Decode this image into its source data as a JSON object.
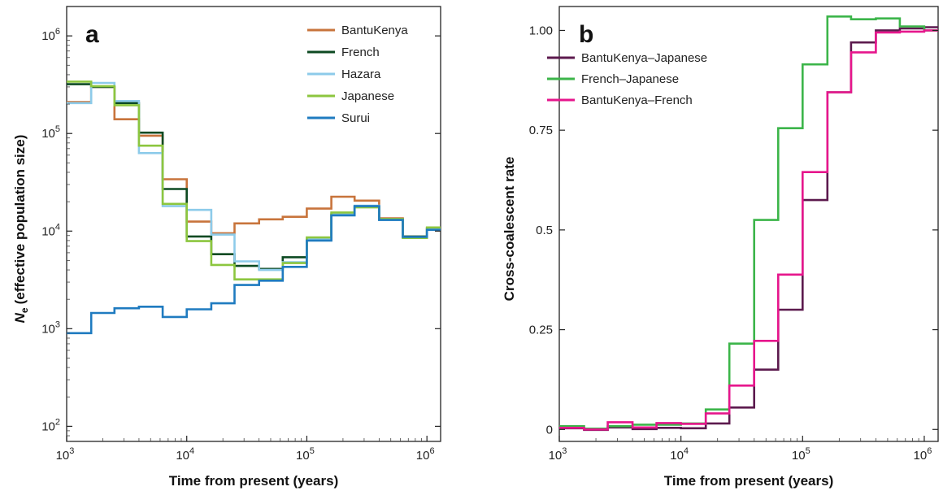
{
  "chart_data": [
    {
      "type": "line",
      "panel": "a",
      "xlabel": "Time from present (years)",
      "ylabel": "(effective population size)",
      "ylabel_symbol": "N",
      "ylabel_subscript": "e",
      "xscale": "log",
      "yscale": "log",
      "xlim": [
        1000,
        1300000
      ],
      "ylim": [
        70,
        2000000
      ],
      "x_ticks": [
        {
          "base": "10",
          "exp": "3"
        },
        {
          "base": "10",
          "exp": "4"
        },
        {
          "base": "10",
          "exp": "5"
        },
        {
          "base": "10",
          "exp": "6"
        }
      ],
      "y_ticks": [
        {
          "base": "10",
          "exp": "2"
        },
        {
          "base": "10",
          "exp": "3"
        },
        {
          "base": "10",
          "exp": "4"
        },
        {
          "base": "10",
          "exp": "5"
        },
        {
          "base": "10",
          "exp": "6"
        }
      ],
      "legend_position": "top-right",
      "step_edges": [
        1000,
        1600,
        2500,
        4000,
        6300,
        10000,
        16000,
        25000,
        40000,
        63000,
        100000,
        160000,
        250000,
        400000,
        630000,
        1000000,
        1300000
      ],
      "series": [
        {
          "name": "BantuKenya",
          "color": "#c8743c",
          "values": [
            210000,
            300000,
            140000,
            95000,
            34000,
            12500,
            9500,
            12000,
            13200,
            14000,
            17000,
            22500,
            20500,
            13500,
            8700,
            10800
          ]
        },
        {
          "name": "French",
          "color": "#0d4a22",
          "values": [
            320000,
            300000,
            205000,
            102000,
            27000,
            8800,
            5800,
            4400,
            4100,
            5400,
            8200,
            14800,
            17800,
            13200,
            8800,
            10500
          ]
        },
        {
          "name": "Hazara",
          "color": "#8dcbea",
          "values": [
            205000,
            330000,
            215000,
            63000,
            18000,
            16500,
            9200,
            4900,
            4000,
            4800,
            8300,
            15200,
            18200,
            13000,
            8600,
            10700
          ]
        },
        {
          "name": "Japanese",
          "color": "#8cc63f",
          "values": [
            340000,
            305000,
            195000,
            75000,
            19000,
            7900,
            4500,
            3200,
            3200,
            4700,
            8600,
            15500,
            17500,
            13300,
            8500,
            10900
          ]
        },
        {
          "name": "Surui",
          "color": "#1f7bc0",
          "values": [
            900,
            1450,
            1620,
            1680,
            1320,
            1580,
            1820,
            2800,
            3100,
            4300,
            8000,
            14500,
            18000,
            13000,
            8700,
            10300
          ]
        }
      ]
    },
    {
      "type": "line",
      "panel": "b",
      "xlabel": "Time from present (years)",
      "ylabel": "Cross-coalescent rate",
      "xscale": "log",
      "yscale": "linear",
      "xlim": [
        1000,
        1300000
      ],
      "ylim": [
        -0.03,
        1.06
      ],
      "x_ticks": [
        {
          "base": "10",
          "exp": "3"
        },
        {
          "base": "10",
          "exp": "4"
        },
        {
          "base": "10",
          "exp": "5"
        },
        {
          "base": "10",
          "exp": "6"
        }
      ],
      "y_ticks": [
        {
          "value": 0,
          "label": "0"
        },
        {
          "value": 0.25,
          "label": "0.25"
        },
        {
          "value": 0.5,
          "label": "0.5"
        },
        {
          "value": 0.75,
          "label": "0.75"
        },
        {
          "value": 1.0,
          "label": "1.00"
        }
      ],
      "legend_position": "top-left",
      "step_edges": [
        1000,
        1600,
        2500,
        4000,
        6300,
        10000,
        16000,
        25000,
        40000,
        63000,
        100000,
        160000,
        250000,
        400000,
        630000,
        1000000,
        1300000
      ],
      "series": [
        {
          "name": "BantuKenya–Japanese",
          "color": "#5c1a4e",
          "values": [
            0.003,
            -0.001,
            0.005,
            0.001,
            0.004,
            0.003,
            0.015,
            0.055,
            0.15,
            0.3,
            0.575,
            0.845,
            0.97,
            1.0,
            1.005,
            1.008
          ]
        },
        {
          "name": "French–Japanese",
          "color": "#3cb54a",
          "values": [
            0.008,
            0.002,
            0.008,
            0.012,
            0.012,
            0.015,
            0.05,
            0.215,
            0.525,
            0.755,
            0.915,
            1.035,
            1.028,
            1.03,
            1.01,
            1.0
          ]
        },
        {
          "name": "BantuKenya–French",
          "color": "#e6168c",
          "values": [
            0.004,
            0.0,
            0.018,
            0.005,
            0.016,
            0.014,
            0.04,
            0.11,
            0.222,
            0.388,
            0.645,
            0.845,
            0.945,
            0.995,
            0.997,
            1.0
          ]
        }
      ]
    }
  ]
}
